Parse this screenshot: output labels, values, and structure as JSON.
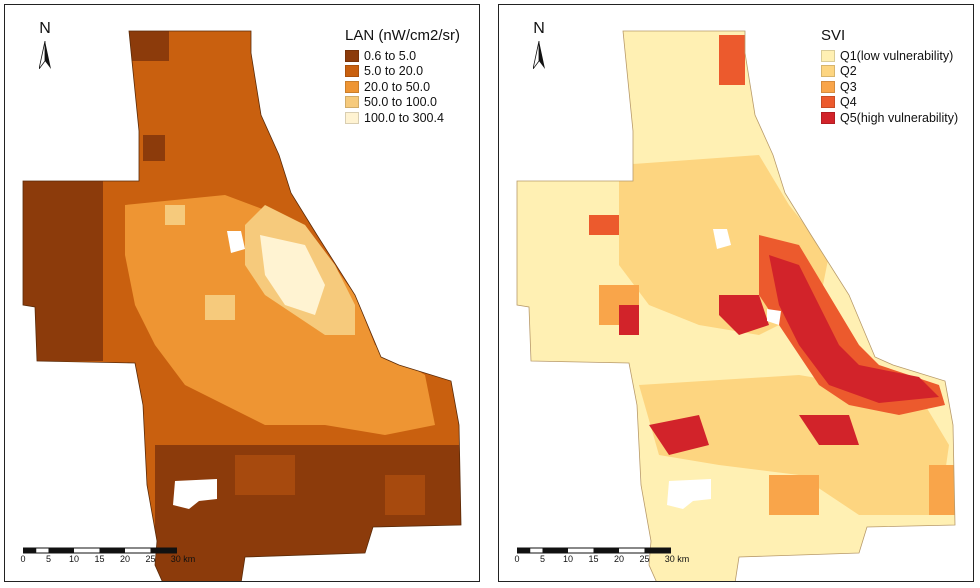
{
  "maps": {
    "left": {
      "north": "N",
      "legend_title": "LAN (nW/cm2/sr)",
      "legend": [
        {
          "label": "0.6 to 5.0",
          "color": "#8c3b0b"
        },
        {
          "label": "5.0 to 20.0",
          "color": "#c9600f"
        },
        {
          "label": "20.0 to 50.0",
          "color": "#ee9533"
        },
        {
          "label": "50.0 to 100.0",
          "color": "#f6ca7c"
        },
        {
          "label": "100.0 to 300.4",
          "color": "#fff3d2"
        }
      ]
    },
    "right": {
      "north": "N",
      "legend_title": "SVI",
      "legend": [
        {
          "label": "Q1(low vulnerability)",
          "color": "#fff0b3"
        },
        {
          "label": "Q2",
          "color": "#fdd580"
        },
        {
          "label": "Q3",
          "color": "#f9a54a"
        },
        {
          "label": "Q4",
          "color": "#ec5a2d"
        },
        {
          "label": "Q5(high vulnerability)",
          "color": "#d2232a"
        }
      ]
    }
  },
  "scalebar": {
    "ticks": [
      "0",
      "5",
      "10",
      "15",
      "20",
      "25",
      "30 km"
    ]
  }
}
